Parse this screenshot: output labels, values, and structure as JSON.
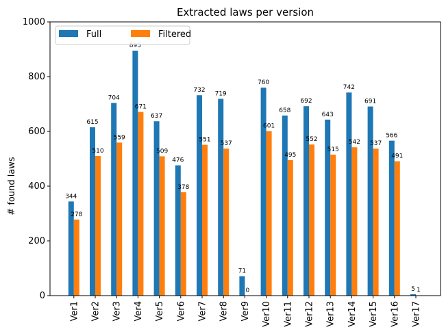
{
  "chart_data": {
    "type": "bar",
    "title": "Extracted laws per version",
    "xlabel": "",
    "ylabel": "# found laws",
    "ylim": [
      0,
      1000
    ],
    "yticks": [
      0,
      200,
      400,
      600,
      800,
      1000
    ],
    "grid": false,
    "legend_position": "top-left",
    "categories": [
      "Ver1",
      "Ver2",
      "Ver3",
      "Ver4",
      "Ver5",
      "Ver6",
      "Ver7",
      "Ver8",
      "Ver9",
      "Ver10",
      "Ver11",
      "Ver12",
      "Ver13",
      "Ver14",
      "Ver15",
      "Ver16",
      "Ver17"
    ],
    "series": [
      {
        "name": "Full",
        "color": "#1f77b4",
        "values": [
          344,
          615,
          704,
          895,
          637,
          476,
          732,
          719,
          71,
          760,
          658,
          692,
          643,
          742,
          691,
          566,
          5
        ]
      },
      {
        "name": "Filtered",
        "color": "#ff7f0e",
        "values": [
          278,
          510,
          559,
          671,
          509,
          378,
          551,
          537,
          0,
          601,
          495,
          552,
          515,
          542,
          537,
          491,
          1
        ]
      }
    ]
  }
}
